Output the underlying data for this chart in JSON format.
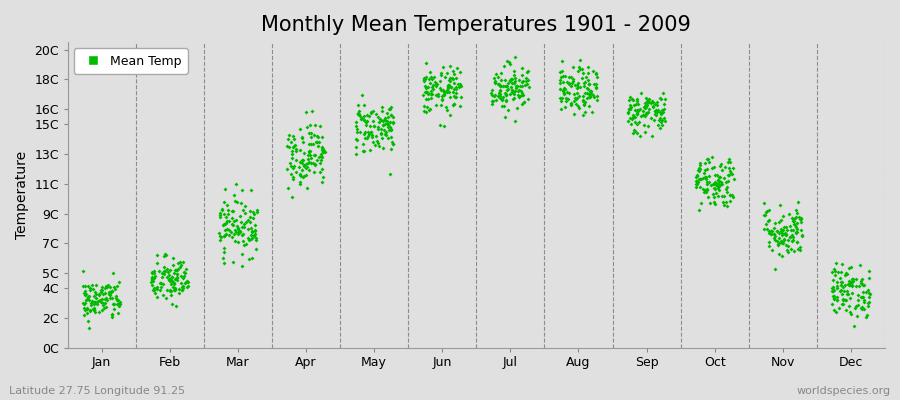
{
  "title": "Monthly Mean Temperatures 1901 - 2009",
  "ylabel": "Temperature",
  "xlabel_bottom_left": "Latitude 27.75 Longitude 91.25",
  "xlabel_bottom_right": "worldspecies.org",
  "legend_label": "Mean Temp",
  "marker_color": "#00bb00",
  "background_color": "#e0e0e0",
  "months": [
    "Jan",
    "Feb",
    "Mar",
    "Apr",
    "May",
    "Jun",
    "Jul",
    "Aug",
    "Sep",
    "Oct",
    "Nov",
    "Dec"
  ],
  "ytick_labels": [
    "0C",
    "2C",
    "4C",
    "5C",
    "7C",
    "9C",
    "11C",
    "13C",
    "15C",
    "16C",
    "18C",
    "20C"
  ],
  "ytick_values": [
    0,
    2,
    4,
    5,
    7,
    9,
    11,
    13,
    15,
    16,
    18,
    20
  ],
  "ylim": [
    0,
    20.5
  ],
  "mean_temps": [
    3.2,
    4.5,
    8.2,
    13.0,
    14.8,
    17.2,
    17.5,
    17.2,
    15.8,
    11.2,
    7.8,
    3.8
  ],
  "spread": [
    0.7,
    0.8,
    1.0,
    1.1,
    0.9,
    0.8,
    0.8,
    0.8,
    0.7,
    0.9,
    0.9,
    0.9
  ],
  "n_years": 109,
  "seed": 42,
  "title_fontsize": 15,
  "axis_fontsize": 10,
  "tick_fontsize": 9,
  "legend_fontsize": 9,
  "marker_size": 4
}
